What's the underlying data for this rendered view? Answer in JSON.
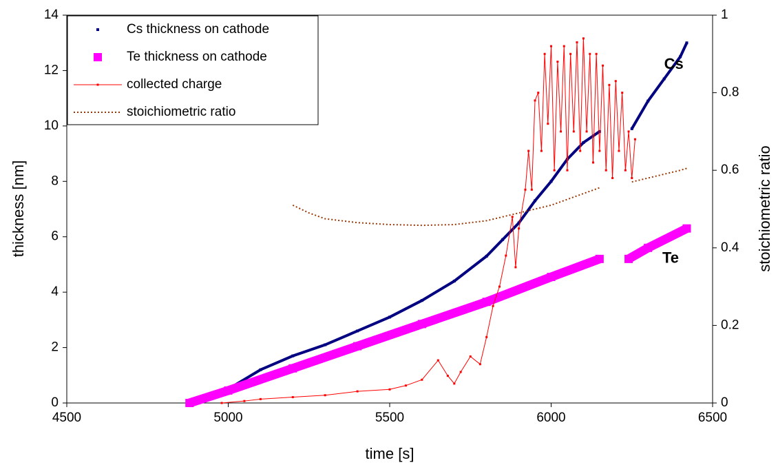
{
  "chart_data": {
    "type": "scatter-line",
    "xlabel": "time [s]",
    "ylabel": "thickness [nm]",
    "y2label": "stoichiometric ratio",
    "xlim": [
      4500,
      6500
    ],
    "xticks": [
      4500,
      5000,
      5500,
      6000,
      6500
    ],
    "ylim": [
      0,
      14
    ],
    "yticks": [
      0,
      2,
      4,
      6,
      8,
      10,
      12,
      14
    ],
    "y2lim": [
      0,
      1
    ],
    "y2ticks": [
      0,
      0.2,
      0.4,
      0.6,
      0.8,
      1
    ],
    "legend": "upper left",
    "annotations": [
      {
        "text": "Cs",
        "x": 6380,
        "y": 12.2
      },
      {
        "text": "Te",
        "x": 6370,
        "y": 5.2
      }
    ],
    "series": [
      {
        "name": "Cs thickness on cathode",
        "color": "#000080",
        "style": "markers",
        "x": [
          4880,
          4950,
          5000,
          5100,
          5200,
          5300,
          5400,
          5500,
          5600,
          5700,
          5800,
          5850,
          5900,
          5950,
          6000,
          6050,
          6100,
          6150,
          6200,
          6250,
          6300,
          6350,
          6400,
          6420
        ],
        "values": [
          0,
          0.2,
          0.5,
          1.2,
          1.7,
          2.1,
          2.6,
          3.1,
          3.7,
          4.4,
          5.3,
          5.9,
          6.5,
          7.3,
          8.0,
          8.8,
          9.4,
          9.8,
          null,
          9.9,
          10.9,
          11.7,
          12.5,
          13.0
        ]
      },
      {
        "name": "Te thickness on cathode",
        "color": "#ff00ff",
        "style": "big-markers",
        "x": [
          4880,
          5000,
          5200,
          5400,
          5600,
          5800,
          6000,
          6150,
          6200,
          6240,
          6300,
          6420
        ],
        "values": [
          0,
          0.45,
          1.25,
          2.05,
          2.85,
          3.65,
          4.55,
          5.2,
          null,
          5.2,
          5.6,
          6.3
        ]
      },
      {
        "name": "collected charge",
        "color": "#ff0000",
        "style": "line-markers",
        "axis": "y2",
        "x": [
          4980,
          5050,
          5100,
          5200,
          5300,
          5400,
          5500,
          5550,
          5600,
          5650,
          5680,
          5700,
          5720,
          5750,
          5780,
          5800,
          5820,
          5840,
          5860,
          5880,
          5890,
          5900,
          5920,
          5930,
          5940,
          5950,
          5960,
          5970,
          5980,
          5990,
          6000,
          6010,
          6020,
          6030,
          6040,
          6050,
          6060,
          6070,
          6080,
          6090,
          6100,
          6110,
          6120,
          6130,
          6140,
          6150,
          6160,
          6170,
          6180,
          6190,
          6200,
          6210,
          6220,
          6230,
          6240,
          6250,
          6260
        ],
        "values": [
          0,
          0.005,
          0.01,
          0.015,
          0.02,
          0.03,
          0.035,
          0.045,
          0.06,
          0.11,
          0.07,
          0.05,
          0.08,
          0.12,
          0.1,
          0.17,
          0.25,
          0.3,
          0.38,
          0.48,
          0.35,
          0.45,
          0.55,
          0.65,
          0.55,
          0.78,
          0.8,
          0.65,
          0.9,
          0.72,
          0.92,
          0.6,
          0.88,
          0.7,
          0.92,
          0.6,
          0.9,
          0.7,
          0.93,
          0.65,
          0.94,
          0.7,
          0.9,
          0.62,
          0.9,
          0.65,
          0.87,
          0.6,
          0.82,
          0.58,
          0.83,
          0.65,
          0.8,
          0.6,
          0.7,
          0.58,
          0.68
        ]
      },
      {
        "name": "stoichiometric ratio",
        "color": "#993300",
        "style": "dotted",
        "axis": "y2",
        "x": [
          5200,
          5250,
          5300,
          5400,
          5500,
          5600,
          5700,
          5800,
          5900,
          6000,
          6100,
          6150,
          6200,
          6250,
          6300,
          6400,
          6420
        ],
        "values": [
          0.51,
          0.49,
          0.475,
          0.465,
          0.46,
          0.458,
          0.46,
          0.47,
          0.49,
          0.51,
          0.54,
          0.555,
          null,
          0.57,
          0.58,
          0.6,
          0.605
        ]
      }
    ]
  }
}
